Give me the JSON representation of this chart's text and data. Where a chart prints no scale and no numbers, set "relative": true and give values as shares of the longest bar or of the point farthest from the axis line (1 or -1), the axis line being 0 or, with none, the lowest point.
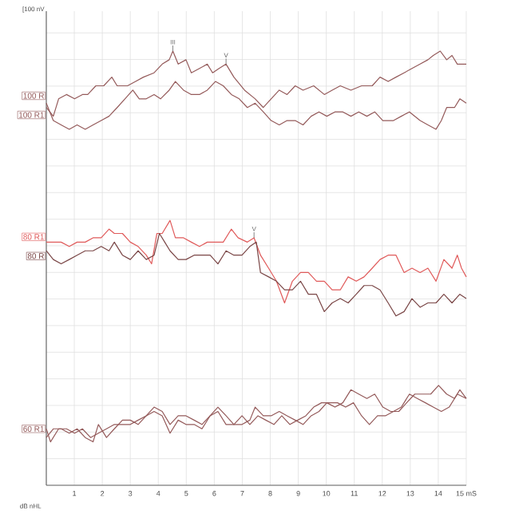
{
  "chart_data": {
    "type": "line",
    "relative": true,
    "grid": true,
    "legend": "left",
    "xlim": [
      0,
      15
    ],
    "xticks": [
      1,
      2,
      3,
      4,
      5,
      6,
      7,
      8,
      9,
      10,
      11,
      12,
      13,
      14,
      {
        "value": 15,
        "label": "15 mS"
      }
    ],
    "annotations": [
      "[100 nV",
      "dB nHL",
      {
        "text": "III",
        "x": 4.52,
        "y": 1.0
      },
      {
        "text": "V",
        "x": 6.42,
        "y": 0.97
      },
      {
        "text": "V",
        "x": 7.42,
        "y": 0.57
      }
    ],
    "series": [
      {
        "name": "100 R1",
        "color": "#945a5a",
        "x": [
          0,
          0.25,
          0.44,
          0.72,
          1.01,
          1.29,
          1.48,
          1.77,
          2.05,
          2.34,
          2.53,
          2.9,
          3.19,
          3.47,
          3.85,
          4.14,
          4.39,
          4.52,
          4.71,
          4.99,
          5.18,
          5.47,
          5.75,
          5.94,
          6.17,
          6.42,
          6.7,
          7.08,
          7.46,
          7.75,
          8.03,
          8.32,
          8.6,
          8.89,
          9.17,
          9.55,
          9.93,
          10.21,
          10.5,
          10.88,
          11.26,
          11.64,
          11.92,
          12.21,
          12.49,
          12.78,
          13.06,
          13.35,
          13.63,
          13.82,
          14.07,
          14.3,
          14.49,
          14.68,
          15
        ],
        "values": [
          0.87,
          0.85,
          0.89,
          0.9,
          0.89,
          0.9,
          0.9,
          0.92,
          0.92,
          0.94,
          0.92,
          0.92,
          0.93,
          0.94,
          0.95,
          0.97,
          0.98,
          1.0,
          0.97,
          0.98,
          0.95,
          0.96,
          0.97,
          0.95,
          0.96,
          0.97,
          0.94,
          0.91,
          0.89,
          0.87,
          0.89,
          0.91,
          0.9,
          0.92,
          0.91,
          0.92,
          0.9,
          0.91,
          0.92,
          0.91,
          0.92,
          0.92,
          0.94,
          0.93,
          0.94,
          0.95,
          0.96,
          0.97,
          0.98,
          0.99,
          1.0,
          0.98,
          0.99,
          0.97,
          0.97
        ]
      },
      {
        "name": "100 R",
        "color": "#945a5a",
        "x": [
          0,
          0.25,
          0.53,
          0.82,
          1.1,
          1.39,
          1.67,
          1.96,
          2.24,
          2.53,
          2.81,
          3.09,
          3.32,
          3.57,
          3.85,
          4.08,
          4.39,
          4.61,
          4.9,
          5.18,
          5.47,
          5.75,
          6.04,
          6.32,
          6.61,
          6.89,
          7.18,
          7.46,
          7.75,
          8.03,
          8.32,
          8.6,
          8.89,
          9.17,
          9.46,
          9.74,
          10.02,
          10.31,
          10.59,
          10.88,
          11.16,
          11.45,
          11.73,
          12.02,
          12.4,
          12.68,
          12.97,
          13.35,
          13.63,
          13.92,
          14.11,
          14.3,
          14.58,
          14.77,
          15
        ],
        "values": [
          0.88,
          0.84,
          0.83,
          0.82,
          0.83,
          0.82,
          0.83,
          0.84,
          0.85,
          0.87,
          0.89,
          0.91,
          0.89,
          0.89,
          0.9,
          0.89,
          0.91,
          0.93,
          0.91,
          0.9,
          0.9,
          0.91,
          0.93,
          0.92,
          0.9,
          0.89,
          0.87,
          0.88,
          0.86,
          0.84,
          0.83,
          0.84,
          0.84,
          0.83,
          0.85,
          0.86,
          0.85,
          0.86,
          0.86,
          0.85,
          0.86,
          0.85,
          0.86,
          0.84,
          0.84,
          0.85,
          0.86,
          0.84,
          0.83,
          0.82,
          0.84,
          0.87,
          0.87,
          0.89,
          0.88
        ]
      },
      {
        "name": "80 R1",
        "color": "#e05a5a",
        "x": [
          0,
          0.25,
          0.53,
          0.82,
          1.1,
          1.39,
          1.67,
          1.96,
          2.24,
          2.43,
          2.72,
          3.0,
          3.28,
          3.57,
          3.76,
          3.95,
          4.14,
          4.42,
          4.61,
          4.9,
          5.18,
          5.47,
          5.75,
          6.04,
          6.32,
          6.61,
          6.85,
          7.18,
          7.42,
          7.65,
          7.94,
          8.22,
          8.51,
          8.79,
          9.08,
          9.36,
          9.65,
          9.93,
          10.21,
          10.5,
          10.78,
          11.07,
          11.35,
          11.64,
          11.92,
          12.21,
          12.49,
          12.78,
          13.06,
          13.35,
          13.63,
          13.92,
          14.2,
          14.49,
          14.68,
          14.83,
          15
        ],
        "values": [
          0.56,
          0.56,
          0.56,
          0.55,
          0.56,
          0.56,
          0.57,
          0.57,
          0.59,
          0.58,
          0.58,
          0.56,
          0.55,
          0.53,
          0.51,
          0.58,
          0.58,
          0.61,
          0.57,
          0.57,
          0.56,
          0.55,
          0.56,
          0.56,
          0.56,
          0.59,
          0.57,
          0.56,
          0.57,
          0.53,
          0.5,
          0.47,
          0.42,
          0.47,
          0.49,
          0.49,
          0.47,
          0.47,
          0.45,
          0.45,
          0.48,
          0.47,
          0.48,
          0.5,
          0.52,
          0.53,
          0.53,
          0.49,
          0.5,
          0.49,
          0.5,
          0.47,
          0.52,
          0.5,
          0.53,
          0.5,
          0.48
        ]
      },
      {
        "name": "80 R",
        "color": "#7a4646",
        "x": [
          0,
          0.25,
          0.53,
          0.82,
          1.1,
          1.39,
          1.67,
          1.96,
          2.24,
          2.43,
          2.72,
          3.0,
          3.28,
          3.57,
          3.85,
          4.04,
          4.23,
          4.42,
          4.71,
          4.99,
          5.28,
          5.56,
          5.85,
          6.13,
          6.42,
          6.7,
          6.99,
          7.27,
          7.5,
          7.65,
          7.94,
          8.22,
          8.51,
          8.79,
          9.08,
          9.36,
          9.65,
          9.93,
          10.21,
          10.5,
          10.78,
          11.07,
          11.35,
          11.64,
          11.92,
          12.21,
          12.49,
          12.78,
          13.06,
          13.35,
          13.63,
          13.92,
          14.2,
          14.49,
          14.77,
          15
        ],
        "values": [
          0.54,
          0.52,
          0.51,
          0.52,
          0.53,
          0.54,
          0.54,
          0.55,
          0.54,
          0.56,
          0.53,
          0.52,
          0.54,
          0.52,
          0.53,
          0.58,
          0.56,
          0.54,
          0.52,
          0.52,
          0.53,
          0.53,
          0.53,
          0.51,
          0.54,
          0.53,
          0.53,
          0.55,
          0.56,
          0.49,
          0.48,
          0.47,
          0.45,
          0.45,
          0.47,
          0.44,
          0.44,
          0.4,
          0.42,
          0.43,
          0.42,
          0.44,
          0.46,
          0.46,
          0.45,
          0.42,
          0.39,
          0.4,
          0.43,
          0.41,
          0.42,
          0.42,
          0.44,
          0.42,
          0.44,
          0.43
        ]
      },
      {
        "name": "60 R1",
        "color": "#945a5a",
        "x": [
          0,
          0.15,
          0.44,
          0.72,
          1.01,
          1.29,
          1.58,
          1.86,
          2.15,
          2.43,
          2.72,
          3.0,
          3.28,
          3.57,
          3.85,
          4.14,
          4.42,
          4.71,
          4.99,
          5.28,
          5.56,
          5.85,
          6.13,
          6.42,
          6.7,
          6.99,
          7.27,
          7.46,
          7.75,
          8.03,
          8.32,
          8.6,
          8.89,
          9.17,
          9.46,
          9.74,
          10.02,
          10.31,
          10.59,
          10.88,
          11.16,
          11.45,
          11.73,
          12.02,
          12.3,
          12.59,
          12.87,
          13.16,
          13.44,
          13.73,
          14.01,
          14.3,
          14.58,
          14.77,
          15
        ],
        "values": [
          0.13,
          0.1,
          0.13,
          0.13,
          0.12,
          0.13,
          0.11,
          0.12,
          0.13,
          0.14,
          0.14,
          0.14,
          0.15,
          0.16,
          0.18,
          0.17,
          0.14,
          0.16,
          0.16,
          0.15,
          0.14,
          0.16,
          0.17,
          0.14,
          0.14,
          0.14,
          0.15,
          0.18,
          0.16,
          0.16,
          0.17,
          0.16,
          0.15,
          0.14,
          0.16,
          0.17,
          0.19,
          0.18,
          0.19,
          0.22,
          0.21,
          0.2,
          0.21,
          0.18,
          0.17,
          0.17,
          0.19,
          0.21,
          0.21,
          0.21,
          0.23,
          0.21,
          0.2,
          0.22,
          0.2
        ]
      },
      {
        "color": "#945a5a",
        "x": [
          0,
          0.25,
          0.53,
          0.82,
          1.1,
          1.39,
          1.67,
          1.86,
          2.15,
          2.43,
          2.72,
          3.0,
          3.28,
          3.57,
          3.85,
          4.14,
          4.42,
          4.71,
          4.99,
          5.28,
          5.56,
          5.85,
          6.13,
          6.42,
          6.7,
          6.99,
          7.27,
          7.56,
          7.84,
          8.13,
          8.41,
          8.7,
          8.98,
          9.27,
          9.55,
          9.83,
          10.12,
          10.4,
          10.69,
          10.97,
          11.26,
          11.54,
          11.83,
          12.11,
          12.4,
          12.68,
          12.97,
          13.25,
          13.54,
          13.82,
          14.11,
          14.39,
          14.68,
          15
        ],
        "values": [
          0.11,
          0.13,
          0.13,
          0.12,
          0.13,
          0.11,
          0.1,
          0.14,
          0.11,
          0.13,
          0.15,
          0.15,
          0.14,
          0.16,
          0.17,
          0.16,
          0.12,
          0.15,
          0.14,
          0.14,
          0.13,
          0.16,
          0.18,
          0.16,
          0.14,
          0.16,
          0.14,
          0.16,
          0.15,
          0.14,
          0.16,
          0.14,
          0.15,
          0.16,
          0.18,
          0.19,
          0.19,
          0.19,
          0.18,
          0.19,
          0.16,
          0.14,
          0.16,
          0.16,
          0.17,
          0.18,
          0.21,
          0.2,
          0.19,
          0.18,
          0.17,
          0.18,
          0.21,
          0.2
        ]
      }
    ]
  }
}
